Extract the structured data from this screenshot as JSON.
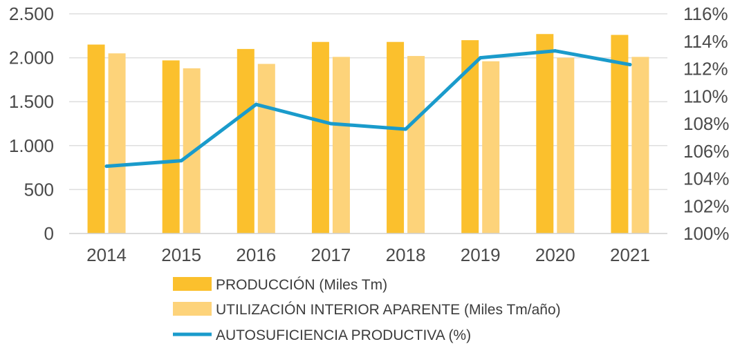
{
  "chart_data": {
    "type": "bar",
    "categories": [
      "2014",
      "2015",
      "2016",
      "2017",
      "2018",
      "2019",
      "2020",
      "2021"
    ],
    "series": [
      {
        "name": "PRODUCCIÓN (Miles Tm)",
        "kind": "bar",
        "axis": "left",
        "color": "#FBC02D",
        "values": [
          2150,
          1970,
          2100,
          2180,
          2180,
          2200,
          2270,
          2260
        ]
      },
      {
        "name": "UTILIZACIÓN INTERIOR APARENTE (Miles Tm/año)",
        "kind": "bar",
        "axis": "left",
        "color": "#FDD37A",
        "values": [
          2050,
          1880,
          1930,
          2010,
          2020,
          1960,
          2000,
          2010
        ]
      },
      {
        "name": "AUTOSUFICIENCIA PRODUCTIVA (%)",
        "kind": "line",
        "axis": "right",
        "color": "#1A9BCB",
        "values": [
          104.9,
          105.3,
          109.4,
          108.0,
          107.6,
          112.8,
          113.3,
          112.3
        ]
      }
    ],
    "y_left": {
      "min": 0,
      "max": 2500,
      "ticks": [
        {
          "value": 0,
          "label": "0"
        },
        {
          "value": 500,
          "label": "500"
        },
        {
          "value": 1000,
          "label": "1.000"
        },
        {
          "value": 1500,
          "label": "1.500"
        },
        {
          "value": 2000,
          "label": "2.000"
        },
        {
          "value": 2500,
          "label": "2.500"
        }
      ]
    },
    "y_right": {
      "min": 100,
      "max": 116,
      "ticks": [
        {
          "value": 100,
          "label": "100%"
        },
        {
          "value": 102,
          "label": "102%"
        },
        {
          "value": 104,
          "label": "104%"
        },
        {
          "value": 106,
          "label": "106%"
        },
        {
          "value": 108,
          "label": "108%"
        },
        {
          "value": 110,
          "label": "110%"
        },
        {
          "value": 112,
          "label": "112%"
        },
        {
          "value": 114,
          "label": "114%"
        },
        {
          "value": 116,
          "label": "116%"
        }
      ]
    },
    "grid": true,
    "legend": "bottom",
    "title": "",
    "xlabel": "",
    "ylabel": ""
  }
}
